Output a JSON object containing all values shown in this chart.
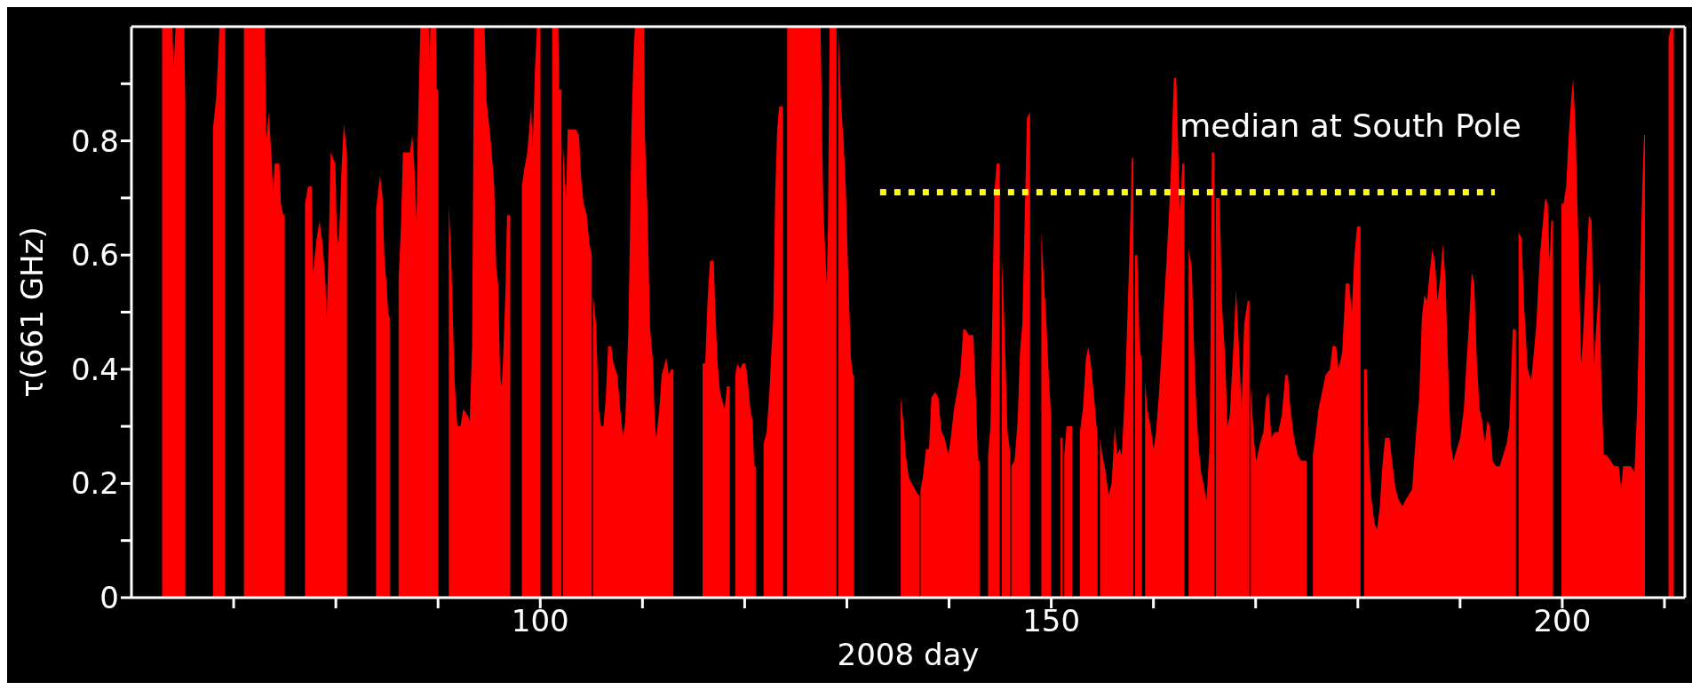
{
  "chart_data": {
    "type": "area",
    "xlabel": "2008 day",
    "ylabel": "τ(661 GHz)",
    "xlim": [
      60,
      212
    ],
    "xticks": [
      {
        "value": 70,
        "label": null
      },
      {
        "value": 80,
        "label": null
      },
      {
        "value": 90,
        "label": null
      },
      100,
      {
        "value": 110,
        "label": null
      },
      {
        "value": 120,
        "label": null
      },
      {
        "value": 130,
        "label": null
      },
      {
        "value": 140,
        "label": null
      },
      150,
      {
        "value": 160,
        "label": null
      },
      {
        "value": 170,
        "label": null
      },
      {
        "value": 180,
        "label": null
      },
      {
        "value": 190,
        "label": null
      },
      200,
      {
        "value": 210,
        "label": null
      }
    ],
    "ylim": [
      0,
      1
    ],
    "yticks": [
      0,
      {
        "value": 0.1,
        "label": null
      },
      0.2,
      {
        "value": 0.3,
        "label": null
      },
      0.4,
      {
        "value": 0.5,
        "label": null
      },
      0.6,
      {
        "value": 0.7,
        "label": null
      },
      0.8,
      {
        "value": 0.9,
        "label": null
      }
    ],
    "series": [
      {
        "color": "#ff0000",
        "x": [
          63.0,
          64.0,
          64.13,
          64.32,
          65.16,
          65.27,
          66.5,
          67.97,
          68.31,
          68.62,
          69.15,
          70,
          71.01,
          73.06,
          73.18,
          73.44,
          73.71,
          73.86,
          74.01,
          74.47,
          74.62,
          74.85,
          75.0,
          76,
          76.98,
          77.28,
          77.63,
          77.78,
          78.12,
          78.42,
          78.69,
          78.96,
          79.11,
          79.34,
          79.49,
          79.72,
          79.95,
          80.1,
          80.25,
          80.4,
          80.55,
          80.78,
          81.09,
          82.5,
          83.93,
          84.32,
          84.58,
          84.74,
          84.96,
          85.12,
          85.27,
          85.7,
          86.14,
          86.37,
          86.56,
          86.94,
          87.25,
          87.48,
          87.7,
          87.89,
          88.0,
          88.27,
          89.1,
          89.15,
          89.26,
          89.8,
          89.87,
          90.02,
          90.5,
          91.05,
          91.28,
          91.62,
          91.89,
          92.19,
          92.46,
          92.88,
          93.1,
          93.33,
          93.52,
          94.55,
          94.74,
          95.16,
          95.5,
          95.69,
          95.88,
          96.07,
          96.22,
          96.37,
          96.6,
          96.75,
          97.06,
          97.6,
          98.2,
          98.43,
          98.73,
          99.11,
          99.26,
          99.49,
          99.68,
          100.02,
          100.6,
          101.16,
          101.77,
          101.85,
          102.08,
          102.15,
          102.23,
          102.53,
          102.68,
          103.1,
          103.48,
          103.79,
          103.98,
          104.24,
          104.55,
          104.81,
          105.04,
          105.1,
          105.16,
          105.46,
          105.73,
          105.96,
          106.18,
          106.41,
          106.64,
          106.95,
          107.17,
          107.55,
          107.78,
          108.09,
          108.32,
          108.62,
          108.77,
          108.92,
          109.11,
          109.26,
          110.14,
          110.24,
          110.51,
          110.74,
          111.05,
          111.2,
          111.35,
          111.65,
          111.88,
          112.34,
          112.57,
          112.8,
          113.03,
          114.5,
          115.88,
          116.14,
          116.37,
          116.6,
          116.98,
          117.13,
          117.36,
          117.59,
          117.89,
          118.04,
          118.27,
          118.54,
          118.8,
          119.07,
          119.3,
          119.56,
          119.79,
          120.06,
          120.25,
          120.55,
          120.78,
          120.93,
          121.08,
          121.5,
          121.85,
          122.15,
          122.42,
          122.61,
          122.8,
          122.99,
          123.18,
          123.37,
          123.75,
          124.0,
          124.16,
          127.43,
          127.55,
          127.7,
          127.93,
          128.04,
          128.16,
          128.31,
          128.99,
          129.07,
          129.15,
          129.45,
          129.68,
          129.91,
          130.13,
          130.4,
          130.59,
          130.7,
          133,
          135.27,
          135.53,
          135.76,
          136.07,
          136.37,
          136.67,
          136.98,
          137.09,
          137.15,
          137.21,
          137.43,
          137.74,
          138.04,
          138.27,
          138.65,
          138.96,
          139.26,
          139.56,
          139.94,
          140.17,
          140.48,
          140.78,
          141.08,
          141.39,
          141.62,
          141.92,
          142.38,
          142.61,
          142.83,
          142.99,
          143.4,
          143.82,
          144.05,
          144.28,
          144.43,
          144.66,
          144.96,
          145.05,
          145.15,
          145.34,
          145.53,
          145.72,
          145.95,
          146.02,
          146.1,
          146.41,
          146.71,
          146.94,
          147.17,
          147.4,
          147.62,
          147.93,
          148.5,
          149.03,
          149.3,
          149.53,
          149.75,
          149.98,
          150.4,
          150.9,
          151.12,
          151.2,
          151.27,
          151.5,
          151.73,
          152.04,
          152.4,
          152.8,
          153.1,
          153.4,
          153.63,
          153.94,
          154.24,
          154.54,
          154.65,
          154.77,
          155.0,
          155.31,
          155.61,
          155.91,
          156.22,
          156.45,
          156.67,
          156.9,
          157.21,
          157.43,
          157.66,
          157.89,
          158.04,
          158.12,
          158.2,
          158.42,
          158.65,
          158.88,
          159.03,
          159.18,
          159.41,
          159.72,
          160.02,
          160.25,
          160.55,
          160.86,
          161.08,
          161.31,
          161.54,
          161.77,
          162.0,
          162.23,
          162.45,
          162.61,
          162.83,
          163.02,
          163.2,
          163.44,
          163.75,
          163.97,
          164.2,
          164.43,
          164.66,
          164.89,
          165.19,
          165.5,
          165.72,
          165.95,
          166.02,
          166.1,
          166.48,
          166.71,
          167.02,
          167.24,
          167.47,
          167.85,
          168.08,
          168.36,
          168.62,
          168.88,
          169.22,
          169.39,
          169.45,
          169.52,
          169.86,
          170.07,
          170.42,
          170.76,
          171.02,
          171.27,
          171.53,
          171.87,
          172.22,
          172.56,
          172.9,
          173.16,
          173.41,
          173.76,
          174.1,
          174.44,
          174.7,
          175.0,
          175.3,
          175.6,
          175.9,
          176.15,
          176.5,
          176.84,
          177.27,
          177.52,
          177.87,
          178.12,
          178.47,
          178.81,
          179.15,
          179.41,
          179.66,
          179.92,
          180.18,
          180.26,
          180.45,
          180.6,
          180.86,
          181.03,
          181.29,
          181.63,
          181.89,
          182.15,
          182.4,
          182.66,
          183.09,
          183.35,
          183.69,
          184.03,
          184.37,
          184.63,
          184.97,
          185.31,
          185.66,
          186.0,
          186.26,
          186.51,
          186.77,
          187.03,
          187.28,
          187.54,
          187.8,
          188.05,
          188.31,
          188.57,
          188.82,
          189.08,
          189.34,
          189.68,
          190.02,
          190.37,
          190.62,
          190.88,
          191.14,
          191.39,
          191.65,
          191.91,
          192.16,
          192.42,
          192.68,
          192.93,
          193.19,
          193.53,
          193.88,
          194.22,
          194.56,
          194.82,
          195.16,
          195.46,
          195.6,
          195.72,
          196.02,
          196.27,
          196.62,
          196.96,
          197.22,
          197.47,
          197.81,
          198.07,
          198.33,
          198.58,
          198.76,
          198.93,
          199.1,
          199.5,
          199.91,
          200.13,
          200.38,
          200.64,
          200.9,
          201.07,
          201.32,
          201.58,
          201.84,
          202.01,
          202.27,
          202.61,
          202.87,
          203.12,
          203.38,
          203.64,
          203.81,
          204.06,
          204.32,
          204.75,
          205.09,
          205.52,
          205.78,
          205.95,
          206.38,
          206.72,
          207.06,
          207.32,
          207.58,
          207.83,
          208.0,
          208.09,
          209.5,
          210.4,
          210.66,
          210.91
        ],
        "values": [
          1,
          1,
          0.93,
          1,
          1,
          0.86,
          null,
          0.82,
          0.88,
          1,
          1,
          null,
          1,
          1,
          0.8,
          0.85,
          0.77,
          0.71,
          0.76,
          0.76,
          0.69,
          0.67,
          0.67,
          null,
          0.69,
          0.72,
          0.72,
          0.57,
          0.63,
          0.66,
          0.62,
          0.56,
          0.49,
          0.65,
          0.78,
          0.77,
          0.76,
          0.64,
          0.62,
          0.67,
          0.75,
          0.83,
          0.78,
          null,
          0.68,
          0.74,
          0.7,
          0.6,
          0.55,
          0.5,
          0.49,
          null,
          0.56,
          0.65,
          0.78,
          0.78,
          0.78,
          0.81,
          0.75,
          0.66,
          0.8,
          1,
          1,
          0.94,
          1,
          1,
          0.89,
          0.89,
          null,
          0.69,
          0.6,
          0.38,
          0.3,
          0.3,
          0.33,
          0.32,
          0.31,
          0.44,
          1,
          1,
          0.87,
          0.8,
          0.72,
          0.58,
          0.55,
          0.39,
          0.37,
          0.42,
          0.54,
          0.67,
          0.67,
          null,
          0.72,
          0.75,
          0.78,
          0.86,
          0.79,
          0.93,
          1,
          1,
          null,
          1,
          1,
          0.89,
          0.89,
          null,
          0.79,
          0.7,
          0.82,
          0.82,
          0.82,
          0.81,
          0.74,
          0.69,
          0.67,
          0.62,
          0.6,
          null,
          0.53,
          0.48,
          0.33,
          0.3,
          0.3,
          0.35,
          0.44,
          0.44,
          0.41,
          0.39,
          0.34,
          0.28,
          0.31,
          0.47,
          0.63,
          0.82,
          0.94,
          1,
          1,
          0.81,
          0.67,
          0.47,
          0.41,
          0.31,
          0.28,
          0.33,
          0.39,
          0.42,
          0.39,
          0.4,
          0.4,
          null,
          0.41,
          0.41,
          0.52,
          0.59,
          0.59,
          0.5,
          0.41,
          0.36,
          0.34,
          0.33,
          0.37,
          0.37,
          null,
          0.39,
          0.41,
          0.4,
          0.41,
          0.41,
          0.39,
          0.33,
          0.31,
          0.23,
          0.23,
          null,
          0.27,
          0.29,
          0.36,
          0.43,
          0.49,
          0.71,
          0.82,
          0.86,
          0.86,
          null,
          1,
          1,
          0.85,
          0.68,
          0.59,
          0.55,
          0.66,
          1,
          1,
          null,
          1,
          0.86,
          0.8,
          0.71,
          0.57,
          0.42,
          0.39,
          0.39,
          null,
          0.35,
          0.31,
          0.25,
          0.21,
          0.2,
          0.19,
          0.18,
          0.18,
          null,
          0.19,
          0.21,
          0.26,
          0.26,
          0.35,
          0.36,
          0.35,
          0.29,
          0.28,
          0.25,
          0.28,
          0.33,
          0.36,
          0.39,
          0.47,
          0.47,
          0.46,
          0.46,
          0.36,
          0.24,
          0.24,
          null,
          0.25,
          0.3,
          0.55,
          0.71,
          0.76,
          0.76,
          null,
          0.6,
          0.52,
          0.41,
          0.29,
          0.26,
          null,
          0.23,
          0.24,
          0.31,
          0.43,
          0.48,
          0.66,
          0.84,
          0.85,
          null,
          0.64,
          0.55,
          0.48,
          0.39,
          0.32,
          null,
          0.28,
          0.28,
          null,
          0.25,
          0.3,
          0.3,
          0.3,
          null,
          0.29,
          0.33,
          0.42,
          0.44,
          0.4,
          0.34,
          0.28,
          null,
          0.28,
          0.25,
          0.22,
          0.18,
          0.2,
          0.3,
          0.25,
          0.26,
          0.25,
          0.36,
          0.48,
          0.61,
          0.77,
          0.77,
          null,
          0.6,
          0.6,
          0.44,
          0.41,
          null,
          0.38,
          0.33,
          0.3,
          0.26,
          0.29,
          0.36,
          0.45,
          0.53,
          0.6,
          0.68,
          0.78,
          0.91,
          0.91,
          0.77,
          0.68,
          0.76,
          0.76,
          null,
          0.61,
          0.58,
          0.44,
          0.33,
          0.26,
          0.22,
          0.2,
          0.17,
          0.27,
          0.78,
          0.78,
          null,
          0.7,
          0.7,
          0.51,
          0.42,
          0.3,
          0.32,
          0.45,
          0.54,
          0.44,
          0.33,
          0.48,
          0.52,
          0.52,
          null,
          0.37,
          0.27,
          0.24,
          0.27,
          0.29,
          0.35,
          0.36,
          0.28,
          0.29,
          0.29,
          0.32,
          0.39,
          0.39,
          0.33,
          0.28,
          0.25,
          0.24,
          0.24,
          0.24,
          null,
          0.25,
          0.29,
          0.33,
          0.36,
          0.39,
          0.4,
          0.44,
          0.44,
          0.4,
          0.43,
          0.55,
          0.55,
          0.5,
          0.6,
          0.65,
          0.65,
          0.65,
          null,
          0.4,
          0.4,
          0.27,
          0.18,
          0.13,
          0.12,
          0.16,
          0.23,
          0.28,
          0.28,
          0.24,
          0.19,
          0.17,
          0.16,
          0.17,
          0.18,
          0.19,
          0.28,
          0.35,
          0.49,
          0.53,
          0.52,
          0.57,
          0.61,
          0.59,
          0.52,
          0.56,
          0.62,
          0.56,
          0.41,
          0.27,
          0.24,
          0.26,
          0.28,
          0.33,
          0.41,
          0.48,
          0.57,
          0.55,
          0.41,
          0.33,
          0.31,
          0.27,
          0.31,
          0.3,
          0.24,
          0.23,
          0.23,
          0.25,
          0.27,
          0.3,
          0.47,
          0.47,
          null,
          0.64,
          0.63,
          0.51,
          0.4,
          0.38,
          0.43,
          0.48,
          0.6,
          0.65,
          0.7,
          0.69,
          0.59,
          0.66,
          0.66,
          null,
          0.69,
          0.69,
          0.72,
          0.81,
          0.88,
          0.91,
          0.81,
          0.62,
          0.41,
          0.45,
          0.55,
          0.67,
          0.66,
          0.41,
          0.49,
          0.56,
          0.39,
          0.25,
          0.25,
          0.24,
          0.23,
          0.23,
          0.19,
          0.23,
          0.23,
          0.23,
          0.22,
          0.33,
          0.53,
          0.72,
          0.81,
          0.81,
          null,
          0.98,
          1,
          1
        ]
      },
      {
        "type": "line",
        "name": "median at South Pole",
        "color": "#ffff00",
        "line_style": "dotted",
        "x": [
          133.25,
          193.4
        ],
        "values": [
          0.71,
          0.71
        ]
      }
    ]
  }
}
